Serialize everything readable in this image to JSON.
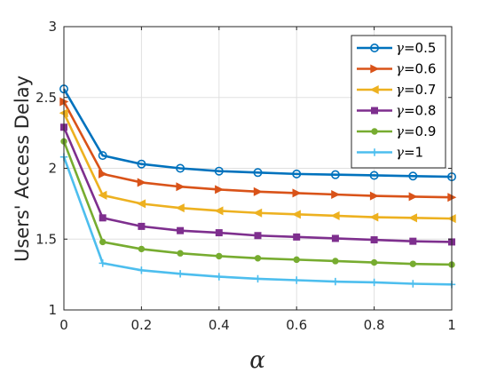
{
  "chart_data": {
    "type": "line",
    "title": "",
    "xlabel": "α",
    "ylabel": "Users' Access Delay",
    "xlim": [
      0,
      1
    ],
    "ylim": [
      1,
      3
    ],
    "x_ticks": [
      0,
      0.2,
      0.4,
      0.6,
      0.8,
      1
    ],
    "x_tick_labels": [
      "0",
      "0.2",
      "0.4",
      "0.6",
      "0.8",
      "1"
    ],
    "y_ticks": [
      1,
      1.5,
      2,
      2.5,
      3
    ],
    "y_tick_labels": [
      "1",
      "1.5",
      "2",
      "2.5",
      "3"
    ],
    "grid": true,
    "legend_position": "top-right",
    "x": [
      0,
      0.1,
      0.2,
      0.3,
      0.4,
      0.5,
      0.6,
      0.7,
      0.8,
      0.9,
      1.0
    ],
    "series": [
      {
        "name": "γ=0.5",
        "color": "#0072BD",
        "marker": "circle",
        "values": [
          2.56,
          2.09,
          2.03,
          2.0,
          1.98,
          1.97,
          1.96,
          1.955,
          1.95,
          1.945,
          1.94
        ]
      },
      {
        "name": "γ=0.6",
        "color": "#D95319",
        "marker": "triangle-right",
        "values": [
          2.47,
          1.96,
          1.9,
          1.87,
          1.85,
          1.835,
          1.825,
          1.815,
          1.805,
          1.8,
          1.795
        ]
      },
      {
        "name": "γ=0.7",
        "color": "#EDB120",
        "marker": "triangle-left",
        "values": [
          2.39,
          1.81,
          1.75,
          1.72,
          1.7,
          1.685,
          1.675,
          1.665,
          1.655,
          1.65,
          1.645
        ]
      },
      {
        "name": "γ=0.8",
        "color": "#7E2F8E",
        "marker": "square",
        "values": [
          2.29,
          1.65,
          1.59,
          1.56,
          1.545,
          1.525,
          1.515,
          1.505,
          1.495,
          1.485,
          1.48
        ]
      },
      {
        "name": "γ=0.9",
        "color": "#77AC30",
        "marker": "dot",
        "values": [
          2.19,
          1.48,
          1.43,
          1.4,
          1.38,
          1.365,
          1.355,
          1.345,
          1.335,
          1.325,
          1.32
        ]
      },
      {
        "name": "γ=1",
        "color": "#4DBEEE",
        "marker": "plus",
        "values": [
          2.08,
          1.33,
          1.28,
          1.255,
          1.235,
          1.22,
          1.21,
          1.2,
          1.195,
          1.185,
          1.18
        ]
      }
    ]
  }
}
